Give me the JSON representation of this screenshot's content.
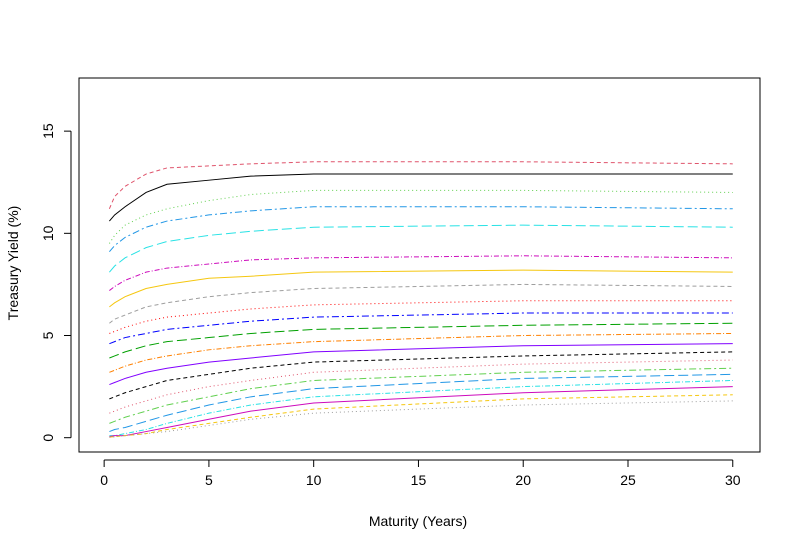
{
  "chart_data": {
    "type": "line",
    "title": "",
    "xlabel": "Maturity (Years)",
    "ylabel": "Treasury Yield (%)",
    "xlim": [
      -1.2,
      31.3
    ],
    "ylim": [
      -0.7,
      17.6
    ],
    "xticks": [
      0,
      5,
      10,
      15,
      20,
      25,
      30
    ],
    "yticks": [
      0,
      5,
      10,
      15
    ],
    "grid": false,
    "legend": "none",
    "maturities": [
      0.25,
      0.5,
      1,
      2,
      3,
      5,
      7,
      10,
      20,
      30
    ],
    "series": [
      {
        "values": [
          10.6,
          10.9,
          11.3,
          12.0,
          12.4,
          12.6,
          12.8,
          12.9,
          12.9,
          12.9
        ]
      },
      {
        "values": [
          11.2,
          11.8,
          12.3,
          12.9,
          13.2,
          13.3,
          13.4,
          13.5,
          13.5,
          13.4
        ]
      },
      {
        "values": [
          9.5,
          9.9,
          10.4,
          10.9,
          11.2,
          11.6,
          11.9,
          12.1,
          12.1,
          12.0
        ]
      },
      {
        "values": [
          9.1,
          9.4,
          9.8,
          10.3,
          10.6,
          10.9,
          11.1,
          11.3,
          11.3,
          11.2
        ]
      },
      {
        "values": [
          8.1,
          8.4,
          8.8,
          9.3,
          9.6,
          9.9,
          10.1,
          10.3,
          10.4,
          10.3
        ]
      },
      {
        "values": [
          7.2,
          7.4,
          7.7,
          8.1,
          8.3,
          8.5,
          8.7,
          8.8,
          8.9,
          8.8
        ]
      },
      {
        "values": [
          6.4,
          6.6,
          6.9,
          7.3,
          7.5,
          7.8,
          7.9,
          8.1,
          8.2,
          8.1
        ]
      },
      {
        "values": [
          5.6,
          5.8,
          6.0,
          6.4,
          6.6,
          6.9,
          7.1,
          7.3,
          7.5,
          7.4
        ]
      },
      {
        "values": [
          5.1,
          5.2,
          5.4,
          5.7,
          5.9,
          6.1,
          6.3,
          6.5,
          6.7,
          6.7
        ]
      },
      {
        "values": [
          4.6,
          4.7,
          4.9,
          5.1,
          5.3,
          5.5,
          5.7,
          5.9,
          6.1,
          6.1
        ]
      },
      {
        "values": [
          3.9,
          4.0,
          4.2,
          4.5,
          4.7,
          4.9,
          5.1,
          5.3,
          5.5,
          5.6
        ]
      },
      {
        "values": [
          3.2,
          3.3,
          3.5,
          3.8,
          4.0,
          4.3,
          4.5,
          4.7,
          5.0,
          5.1
        ]
      },
      {
        "values": [
          2.6,
          2.7,
          2.9,
          3.2,
          3.4,
          3.7,
          3.9,
          4.2,
          4.5,
          4.6
        ]
      },
      {
        "values": [
          1.9,
          2.0,
          2.2,
          2.5,
          2.8,
          3.1,
          3.4,
          3.7,
          4.0,
          4.2
        ]
      },
      {
        "values": [
          1.2,
          1.3,
          1.5,
          1.8,
          2.1,
          2.5,
          2.8,
          3.2,
          3.6,
          3.8
        ]
      },
      {
        "values": [
          0.7,
          0.8,
          1.0,
          1.3,
          1.6,
          2.0,
          2.4,
          2.8,
          3.2,
          3.4
        ]
      },
      {
        "values": [
          0.3,
          0.4,
          0.5,
          0.8,
          1.1,
          1.6,
          2.0,
          2.4,
          2.9,
          3.1
        ]
      },
      {
        "values": [
          0.1,
          0.1,
          0.2,
          0.4,
          0.7,
          1.2,
          1.6,
          2.0,
          2.5,
          2.8
        ]
      },
      {
        "values": [
          0.05,
          0.1,
          0.1,
          0.3,
          0.5,
          0.9,
          1.3,
          1.7,
          2.2,
          2.5
        ]
      },
      {
        "values": [
          0.03,
          0.05,
          0.1,
          0.2,
          0.4,
          0.7,
          1.0,
          1.4,
          1.9,
          2.1
        ]
      },
      {
        "values": [
          0.02,
          0.04,
          0.1,
          0.2,
          0.3,
          0.6,
          0.9,
          1.2,
          1.6,
          1.8
        ]
      }
    ],
    "colors": [
      "#000000",
      "#df536b",
      "#61d04f",
      "#2297e6",
      "#28e2e5",
      "#cd0bbc",
      "#f5c710",
      "#9e9e9e",
      "#ff0000",
      "#0000ff",
      "#00a000",
      "#ff8000",
      "#8000ff"
    ]
  }
}
